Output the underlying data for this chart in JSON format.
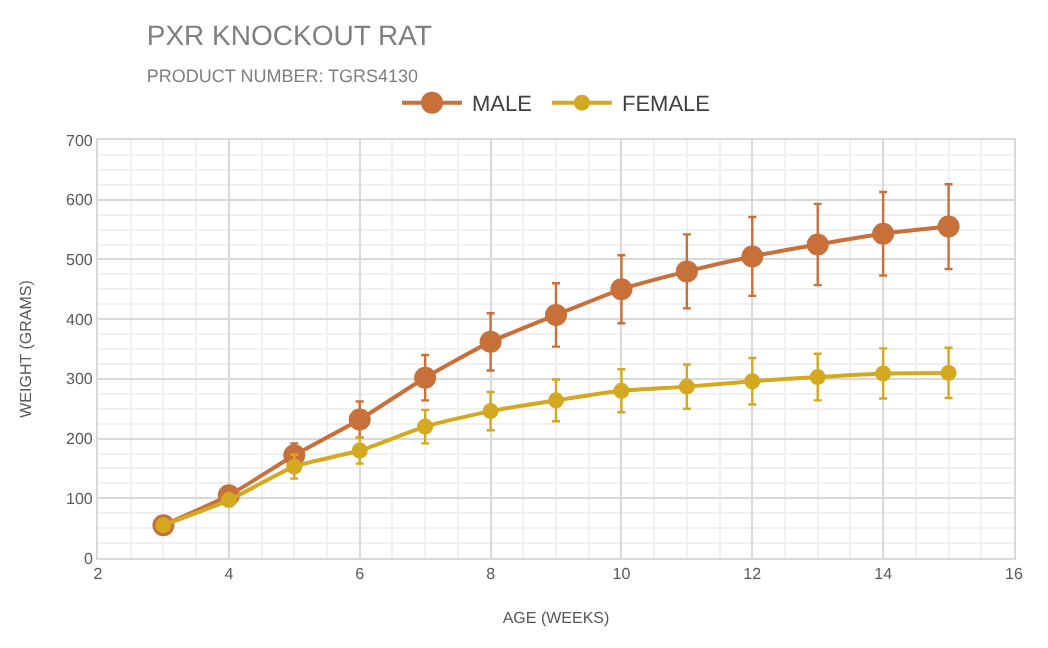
{
  "chart_data": {
    "type": "line",
    "title": "PXR KNOCKOUT RAT",
    "subtitle": "PRODUCT NUMBER: TGRS4130",
    "xlabel": "AGE (WEEKS)",
    "ylabel": "WEIGHT (GRAMS)",
    "x": [
      3,
      4,
      5,
      6,
      7,
      8,
      9,
      10,
      11,
      12,
      13,
      14,
      15
    ],
    "series": [
      {
        "name": "MALE",
        "color": "#c8703a",
        "values": [
          55,
          105,
          172,
          232,
          302,
          362,
          407,
          450,
          480,
          505,
          525,
          543,
          555
        ],
        "errors": [
          null,
          null,
          20,
          30,
          38,
          48,
          53,
          57,
          62,
          66,
          68,
          70,
          71
        ]
      },
      {
        "name": "FEMALE",
        "color": "#d4a820",
        "values": [
          55,
          97,
          153,
          180,
          220,
          246,
          264,
          280,
          287,
          296,
          303,
          309,
          310
        ],
        "errors": [
          null,
          null,
          20,
          22,
          28,
          32,
          35,
          36,
          37,
          39,
          39,
          42,
          42
        ]
      }
    ],
    "xlim": [
      2,
      16
    ],
    "xticks": [
      2,
      4,
      6,
      8,
      10,
      12,
      14,
      16
    ],
    "ylim": [
      0,
      700
    ],
    "yticks": [
      0,
      100,
      200,
      300,
      400,
      500,
      600,
      700
    ],
    "grid": true,
    "legend": "top",
    "marker": "circle",
    "line_style": "solid"
  }
}
